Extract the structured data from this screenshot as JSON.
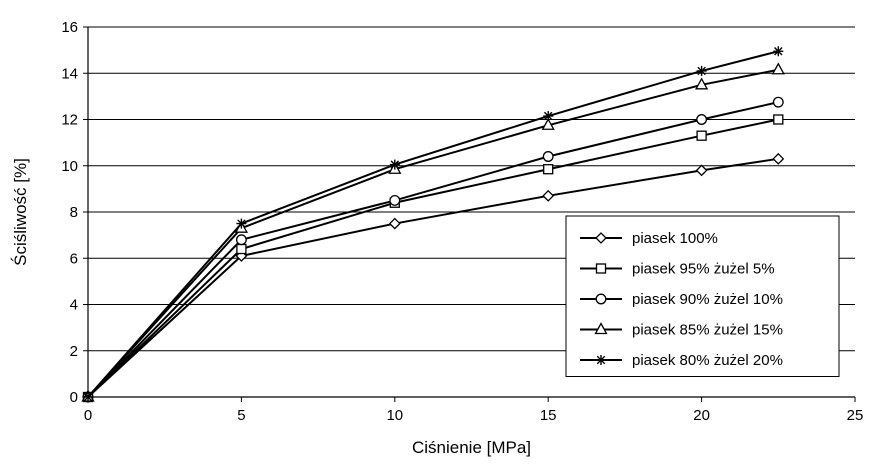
{
  "chart_data": {
    "type": "line",
    "title": "",
    "xlabel": "Ciśnienie   [MPa]",
    "ylabel": "Ściśliwość   [%]",
    "xlim": [
      0,
      25
    ],
    "ylim": [
      0,
      16
    ],
    "xticks": [
      0,
      5,
      10,
      15,
      20,
      25
    ],
    "yticks": [
      0,
      2,
      4,
      6,
      8,
      10,
      12,
      14,
      16
    ],
    "grid": "horizontal",
    "legend_position": "bottom-right",
    "x": [
      0,
      5,
      10,
      15,
      20,
      22.5
    ],
    "series": [
      {
        "name": "piasek 100%",
        "marker": "diamond",
        "values": [
          0,
          6.1,
          7.5,
          8.7,
          9.8,
          10.3
        ]
      },
      {
        "name": "piasek 95% żużel 5%",
        "marker": "square",
        "values": [
          0,
          6.4,
          8.4,
          9.85,
          11.3,
          12.0
        ]
      },
      {
        "name": "piasek 90% żużel 10%",
        "marker": "circle",
        "values": [
          0,
          6.8,
          8.5,
          10.4,
          12.0,
          12.75
        ]
      },
      {
        "name": "piasek 85% żużel 15%",
        "marker": "triangle",
        "values": [
          0,
          7.3,
          9.85,
          11.75,
          13.5,
          14.15
        ]
      },
      {
        "name": "piasek 80% żużel 20%",
        "marker": "star",
        "values": [
          0,
          7.5,
          10.05,
          12.15,
          14.1,
          14.95
        ]
      }
    ]
  }
}
